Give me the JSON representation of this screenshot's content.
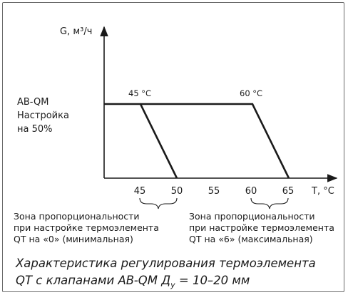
{
  "diagram": {
    "y_axis_label": "G, м³/ч",
    "x_axis_label": "T, °C",
    "setting_label": [
      "AB-QM",
      "Настройка",
      "на 50%"
    ],
    "x_ticks": [
      "45",
      "50",
      "55",
      "60",
      "65"
    ],
    "line_labels": {
      "left": "45 °C",
      "right": "60 °C"
    },
    "zones": {
      "left": [
        "Зона пропорциональности",
        "при настройке термоэлемента",
        "QT на «0» (минимальная)"
      ],
      "right": [
        "Зона пропорциональности",
        "при настройке термоэлемента",
        "QT на «6» (максимальная)"
      ]
    },
    "caption": {
      "line1": "Характеристика регулирования термоэлемента",
      "line2_prefix": "QT с клапанами AB-QM Д",
      "line2_sub": "у",
      "line2_suffix": " = 10–20 мм"
    }
  },
  "colors": {
    "line": "#1a1a1a",
    "frame": "#6a6a6a"
  }
}
